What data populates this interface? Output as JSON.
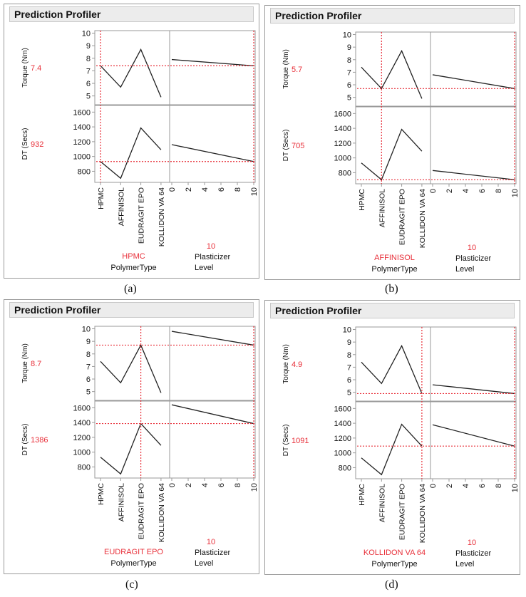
{
  "colors": {
    "marker": "#e8303a",
    "line": "#222222",
    "frame": "#9a9a9a"
  },
  "chart_data": [
    {
      "type": "line",
      "panel_title": "Prediction Profiler",
      "caption": "(a)",
      "y_axes": [
        {
          "label": "Torque (Nm)",
          "ticks": [
            5,
            6,
            7,
            8,
            9,
            10
          ],
          "ylim": [
            4.3,
            10.2
          ],
          "current": 7.4,
          "current_label": "7.4"
        },
        {
          "label": "DT (Secs)",
          "ticks": [
            800,
            1000,
            1200,
            1400,
            1600
          ],
          "ylim": [
            650,
            1690
          ],
          "current": 932,
          "current_label": "932"
        }
      ],
      "factors": [
        {
          "name": "PolymerType",
          "type": "categorical",
          "categories": [
            "HPMC",
            "AFFINISOL",
            "EUDRAGIT EPO",
            "KOLLIDON VA 64"
          ],
          "current": "HPMC"
        },
        {
          "name": "Plasticizer Level",
          "type": "continuous",
          "ticks": [
            "0",
            "2",
            "4",
            "6",
            "8",
            "10"
          ],
          "xlim": [
            0,
            10
          ],
          "current": 10,
          "current_label": "10"
        }
      ],
      "series": [
        {
          "name": "Torque (Nm)",
          "polymer_curve": [
            7.4,
            5.7,
            8.7,
            4.9
          ],
          "plasticizer_line": [
            7.9,
            7.4
          ]
        },
        {
          "name": "DT (Secs)",
          "polymer_curve": [
            932,
            705,
            1386,
            1091
          ],
          "plasticizer_line": [
            1160,
            932
          ]
        }
      ]
    },
    {
      "type": "line",
      "panel_title": "Prediction Profiler",
      "caption": "(b)",
      "y_axes": [
        {
          "label": "Torque (Nm)",
          "ticks": [
            5,
            6,
            7,
            8,
            9,
            10
          ],
          "ylim": [
            4.3,
            10.2
          ],
          "current": 5.7,
          "current_label": "5.7"
        },
        {
          "label": "DT (Secs)",
          "ticks": [
            800,
            1000,
            1200,
            1400,
            1600
          ],
          "ylim": [
            650,
            1690
          ],
          "current": 705,
          "current_label": "705"
        }
      ],
      "factors": [
        {
          "name": "PolymerType",
          "type": "categorical",
          "categories": [
            "HPMC",
            "AFFINISOL",
            "EUDRAGIT EPO",
            "KOLLIDON VA 64"
          ],
          "current": "AFFINISOL"
        },
        {
          "name": "Plasticizer Level",
          "type": "continuous",
          "ticks": [
            "0",
            "2",
            "4",
            "6",
            "8",
            "10"
          ],
          "xlim": [
            0,
            10
          ],
          "current": 10,
          "current_label": "10"
        }
      ],
      "series": [
        {
          "name": "Torque (Nm)",
          "polymer_curve": [
            7.4,
            5.7,
            8.7,
            4.9
          ],
          "plasticizer_line": [
            6.8,
            5.7
          ]
        },
        {
          "name": "DT (Secs)",
          "polymer_curve": [
            932,
            705,
            1386,
            1091
          ],
          "plasticizer_line": [
            830,
            705
          ]
        }
      ]
    },
    {
      "type": "line",
      "panel_title": "Prediction Profiler",
      "caption": "(c)",
      "y_axes": [
        {
          "label": "Torque (Nm)",
          "ticks": [
            5,
            6,
            7,
            8,
            9,
            10
          ],
          "ylim": [
            4.3,
            10.2
          ],
          "current": 8.7,
          "current_label": "8.7"
        },
        {
          "label": "DT (Secs)",
          "ticks": [
            800,
            1000,
            1200,
            1400,
            1600
          ],
          "ylim": [
            650,
            1690
          ],
          "current": 1386,
          "current_label": "1386"
        }
      ],
      "factors": [
        {
          "name": "PolymerType",
          "type": "categorical",
          "categories": [
            "HPMC",
            "AFFINISOL",
            "EUDRAGIT EPO",
            "KOLLIDON VA 64"
          ],
          "current": "EUDRAGIT EPO"
        },
        {
          "name": "Plasticizer Level",
          "type": "continuous",
          "ticks": [
            "0",
            "2",
            "4",
            "6",
            "8",
            "10"
          ],
          "xlim": [
            0,
            10
          ],
          "current": 10,
          "current_label": "10"
        }
      ],
      "series": [
        {
          "name": "Torque (Nm)",
          "polymer_curve": [
            7.4,
            5.7,
            8.7,
            4.9
          ],
          "plasticizer_line": [
            9.8,
            8.7
          ]
        },
        {
          "name": "DT (Secs)",
          "polymer_curve": [
            932,
            705,
            1386,
            1091
          ],
          "plasticizer_line": [
            1640,
            1386
          ]
        }
      ]
    },
    {
      "type": "line",
      "panel_title": "Prediction Profiler",
      "caption": "(d)",
      "y_axes": [
        {
          "label": "Torque (Nm)",
          "ticks": [
            5,
            6,
            7,
            8,
            9,
            10
          ],
          "ylim": [
            4.3,
            10.2
          ],
          "current": 4.9,
          "current_label": "4.9"
        },
        {
          "label": "DT (Secs)",
          "ticks": [
            800,
            1000,
            1200,
            1400,
            1600
          ],
          "ylim": [
            650,
            1690
          ],
          "current": 1091,
          "current_label": "1091"
        }
      ],
      "factors": [
        {
          "name": "PolymerType",
          "type": "categorical",
          "categories": [
            "HPMC",
            "AFFINISOL",
            "EUDRAGIT EPO",
            "KOLLIDON VA 64"
          ],
          "current": "KOLLIDON VA 64"
        },
        {
          "name": "Plasticizer Level",
          "type": "continuous",
          "ticks": [
            "0",
            "2",
            "4",
            "6",
            "8",
            "10"
          ],
          "xlim": [
            0,
            10
          ],
          "current": 10,
          "current_label": "10"
        }
      ],
      "series": [
        {
          "name": "Torque (Nm)",
          "polymer_curve": [
            7.4,
            5.7,
            8.7,
            4.9
          ],
          "plasticizer_line": [
            5.6,
            4.9
          ]
        },
        {
          "name": "DT (Secs)",
          "polymer_curve": [
            932,
            705,
            1386,
            1091
          ],
          "plasticizer_line": [
            1380,
            1091
          ]
        }
      ]
    }
  ]
}
